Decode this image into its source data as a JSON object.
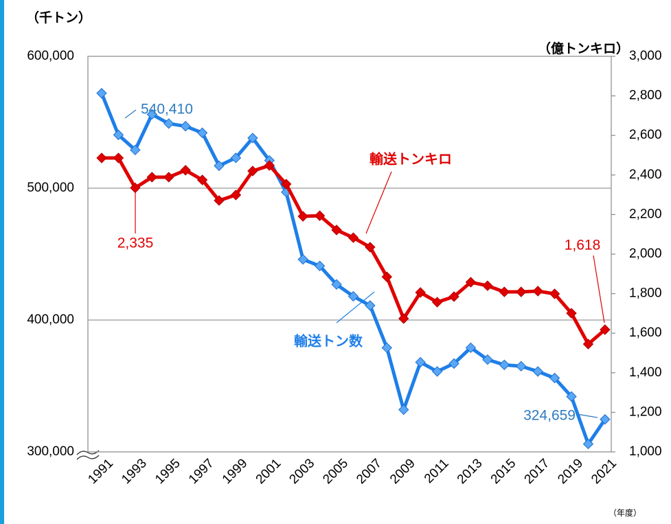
{
  "chart_data": {
    "type": "line",
    "y_label": "（千トン）",
    "y2_label": "（億トンキロ）",
    "x_label": "（年度）",
    "categories": [
      "1991",
      null,
      "1993",
      null,
      "1995",
      null,
      "1997",
      null,
      "1999",
      null,
      "2001",
      null,
      "2003",
      null,
      "2005",
      null,
      "2007",
      null,
      "2009",
      null,
      "2011",
      null,
      "2013",
      null,
      "2015",
      null,
      "2017",
      null,
      "2019",
      null,
      "2021"
    ],
    "ylim": [
      300000,
      600000
    ],
    "yticks": [
      {
        "value": 300000,
        "label": "300,000"
      },
      {
        "value": 400000,
        "label": "400,000"
      },
      {
        "value": 500000,
        "label": "500,000"
      },
      {
        "value": 600000,
        "label": "600,000"
      }
    ],
    "y2lim": [
      1000,
      3000
    ],
    "y2ticks": [
      {
        "value": 1000,
        "label": "1,000"
      },
      {
        "value": 1200,
        "label": "1,200"
      },
      {
        "value": 1400,
        "label": "1,400"
      },
      {
        "value": 1600,
        "label": "1,600"
      },
      {
        "value": 1800,
        "label": "1,800"
      },
      {
        "value": 2000,
        "label": "2,000"
      },
      {
        "value": 2200,
        "label": "2,200"
      },
      {
        "value": 2400,
        "label": "2,400"
      },
      {
        "value": 2600,
        "label": "2,600"
      },
      {
        "value": 2800,
        "label": "2,800"
      },
      {
        "value": 3000,
        "label": "3,000"
      }
    ],
    "grid": true,
    "series": [
      {
        "name": "輸送トン数",
        "color": "#1e7fe8",
        "marker_color": "#5aa8f5",
        "axis": "y",
        "values": [
          572000,
          540410,
          529000,
          556000,
          549000,
          547000,
          542000,
          517000,
          523000,
          538000,
          521000,
          497000,
          446000,
          441000,
          427000,
          418000,
          411000,
          379000,
          332000,
          368000,
          361000,
          367000,
          379000,
          370000,
          366000,
          365000,
          361000,
          356000,
          342000,
          306000,
          324659
        ],
        "value_labels": [
          null,
          "540,410",
          null,
          null,
          null,
          null,
          null,
          null,
          null,
          null,
          null,
          null,
          null,
          null,
          null,
          null,
          null,
          null,
          null,
          null,
          null,
          null,
          null,
          null,
          null,
          null,
          null,
          null,
          null,
          null,
          "324,659"
        ],
        "label_color": "#2e7bc0"
      },
      {
        "name": "輸送トンキロ",
        "color": "#e00000",
        "marker_color": "#e00000",
        "axis": "y2",
        "values": [
          2486,
          2486,
          2335,
          2389,
          2389,
          2424,
          2375,
          2271,
          2299,
          2420,
          2448,
          2354,
          2191,
          2194,
          2122,
          2083,
          2035,
          1885,
          1674,
          1806,
          1757,
          1785,
          1858,
          1840,
          1809,
          1809,
          1813,
          1799,
          1701,
          1545,
          1618
        ],
        "value_labels": [
          null,
          null,
          "2,335",
          null,
          null,
          null,
          null,
          null,
          null,
          null,
          null,
          null,
          null,
          null,
          null,
          null,
          null,
          null,
          null,
          null,
          null,
          null,
          null,
          null,
          null,
          null,
          null,
          null,
          null,
          null,
          "1,618"
        ],
        "label_color": "#e00000"
      }
    ]
  }
}
